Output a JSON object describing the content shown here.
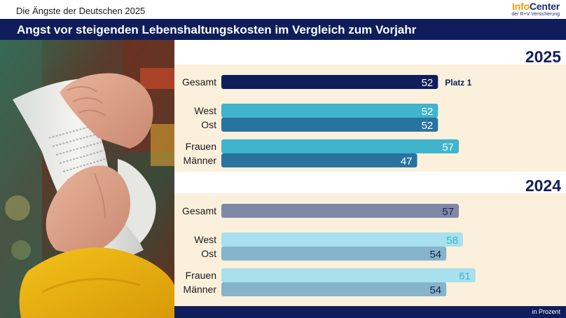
{
  "header": {
    "top_title": "Die Ängste der Deutschen 2025",
    "logo_info": "Info",
    "logo_center": "Center",
    "logo_sub": "der R+V Versicherung",
    "banner": "Angst vor steigenden Lebenshaltungskosten im Vergleich zum Vorjahr"
  },
  "footer": {
    "note": "in Prozent"
  },
  "colors": {
    "navy": "#0f1d5a",
    "panel_bg": "#fbf0dc",
    "bar_2025_gesamt": "#0f1d5a",
    "bar_2025_light": "#40b4cc",
    "bar_2025_dark": "#2a72a0",
    "bar_2024_gesamt": "#8088a8",
    "bar_2024_light": "#a8e0ee",
    "bar_2024_dark": "#85b4cc"
  },
  "chart_data": {
    "type": "bar",
    "orientation": "horizontal",
    "unit": "in Prozent",
    "groups": [
      {
        "year": "2025",
        "bars": [
          {
            "label": "Gesamt",
            "value": 52,
            "annotation": "Platz 1",
            "color": "#0f1d5a",
            "value_color": "#ffffff"
          },
          {
            "label": "West",
            "value": 52,
            "color": "#40b4cc",
            "value_color": "#ffffff"
          },
          {
            "label": "Ost",
            "value": 52,
            "color": "#2a72a0",
            "value_color": "#ffffff"
          },
          {
            "label": "Frauen",
            "value": 57,
            "color": "#40b4cc",
            "value_color": "#ffffff"
          },
          {
            "label": "Männer",
            "value": 47,
            "color": "#2a72a0",
            "value_color": "#ffffff"
          }
        ]
      },
      {
        "year": "2024",
        "bars": [
          {
            "label": "Gesamt",
            "value": 57,
            "color": "#8088a8",
            "value_color": "#1a2250"
          },
          {
            "label": "West",
            "value": 58,
            "color": "#a8e0ee",
            "value_color": "#40b4cc"
          },
          {
            "label": "Ost",
            "value": 54,
            "color": "#85b4cc",
            "value_color": "#1a2250"
          },
          {
            "label": "Frauen",
            "value": 61,
            "color": "#a8e0ee",
            "value_color": "#40b4cc"
          },
          {
            "label": "Männer",
            "value": 54,
            "color": "#85b4cc",
            "value_color": "#1a2250"
          }
        ]
      }
    ]
  }
}
